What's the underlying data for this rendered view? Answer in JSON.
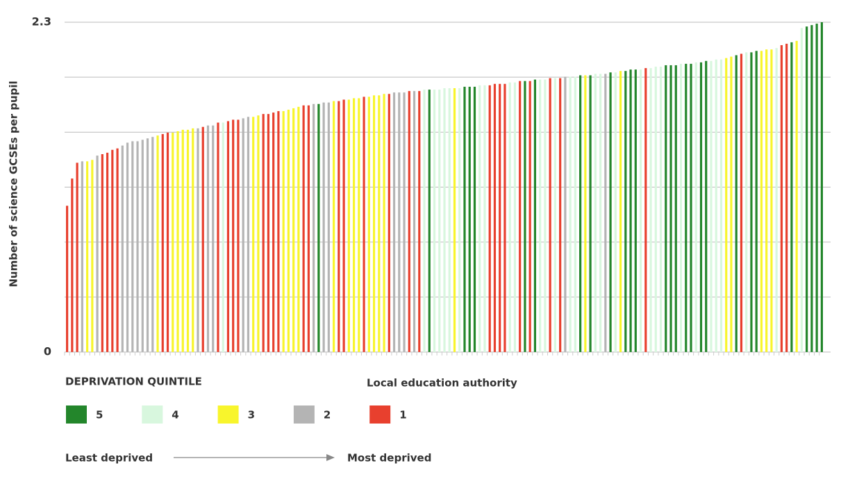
{
  "chart_data": {
    "type": "bar",
    "ylabel": "Number of science GCSEs per pupil",
    "ylim": [
      0,
      2.3
    ],
    "yticks": [
      0,
      2.3
    ],
    "ygrid": [
      0.383,
      0.767,
      1.15,
      1.533,
      1.917
    ],
    "grid": true,
    "categories": [
      null,
      null,
      null,
      null,
      null,
      null,
      null,
      null,
      null,
      null,
      null,
      null,
      null,
      null,
      null,
      null,
      null,
      null,
      null,
      null,
      null,
      null,
      null,
      null,
      null,
      null,
      null,
      null,
      null,
      null,
      null,
      null,
      null,
      null,
      null,
      null,
      null,
      null,
      null,
      null,
      null,
      null,
      null,
      null,
      null,
      null,
      null,
      null,
      null,
      null,
      null,
      null,
      null,
      null,
      null,
      null,
      null,
      null,
      null,
      null,
      null,
      null,
      null,
      null,
      null,
      null,
      null,
      null,
      null,
      null,
      null,
      null,
      null,
      null,
      null,
      null,
      null,
      null,
      null,
      null,
      null,
      null,
      null,
      null,
      null,
      null,
      null,
      null,
      null,
      null,
      null,
      null,
      null,
      null,
      null,
      null,
      null,
      null,
      null,
      null,
      null,
      null,
      null,
      null,
      null,
      null,
      null,
      null,
      null,
      null,
      null,
      null,
      null,
      null,
      null,
      null,
      null,
      null,
      null,
      null,
      null,
      null,
      null,
      null,
      null,
      null,
      null,
      null,
      null,
      null,
      null,
      null,
      null,
      null,
      null,
      null,
      null,
      null,
      null,
      null,
      null,
      null,
      null,
      null,
      null,
      null,
      null,
      null,
      null,
      null,
      null
    ],
    "values": [
      1.02,
      1.21,
      1.32,
      1.33,
      1.33,
      1.34,
      1.37,
      1.38,
      1.39,
      1.41,
      1.42,
      1.44,
      1.46,
      1.47,
      1.47,
      1.48,
      1.49,
      1.5,
      1.51,
      1.52,
      1.53,
      1.53,
      1.54,
      1.55,
      1.55,
      1.56,
      1.56,
      1.57,
      1.58,
      1.58,
      1.6,
      1.6,
      1.61,
      1.62,
      1.62,
      1.63,
      1.64,
      1.64,
      1.65,
      1.66,
      1.66,
      1.67,
      1.68,
      1.68,
      1.69,
      1.7,
      1.71,
      1.72,
      1.72,
      1.73,
      1.73,
      1.74,
      1.74,
      1.75,
      1.75,
      1.76,
      1.76,
      1.77,
      1.77,
      1.78,
      1.78,
      1.79,
      1.79,
      1.8,
      1.8,
      1.81,
      1.81,
      1.81,
      1.82,
      1.82,
      1.82,
      1.83,
      1.83,
      1.83,
      1.83,
      1.84,
      1.84,
      1.84,
      1.84,
      1.85,
      1.85,
      1.85,
      1.86,
      1.86,
      1.86,
      1.87,
      1.87,
      1.87,
      1.88,
      1.88,
      1.89,
      1.89,
      1.89,
      1.9,
      1.9,
      1.9,
      1.91,
      1.91,
      1.91,
      1.92,
      1.92,
      1.92,
      1.93,
      1.93,
      1.93,
      1.94,
      1.94,
      1.94,
      1.95,
      1.95,
      1.96,
      1.96,
      1.97,
      1.97,
      1.97,
      1.98,
      1.98,
      1.99,
      1.99,
      2.0,
      2.0,
      2.0,
      2.01,
      2.01,
      2.01,
      2.02,
      2.02,
      2.03,
      2.03,
      2.04,
      2.04,
      2.05,
      2.06,
      2.07,
      2.08,
      2.09,
      2.09,
      2.1,
      2.1,
      2.11,
      2.11,
      2.12,
      2.14,
      2.15,
      2.16,
      2.17,
      2.26,
      2.27,
      2.28,
      2.29,
      2.3
    ],
    "quintiles": [
      "1",
      "1",
      "1",
      "2",
      "3",
      "3",
      "2",
      "1",
      "1",
      "1",
      "1",
      "2",
      "2",
      "2",
      "2",
      "2",
      "2",
      "2",
      "3",
      "1",
      "1",
      "3",
      "3",
      "3",
      "3",
      "3",
      "2",
      "1",
      "2",
      "2",
      "1",
      "4",
      "1",
      "1",
      "1",
      "2",
      "2",
      "3",
      "3",
      "1",
      "1",
      "1",
      "1",
      "3",
      "3",
      "3",
      "3",
      "1",
      "1",
      "2",
      "5",
      "2",
      "2",
      "3",
      "1",
      "1",
      "3",
      "3",
      "3",
      "1",
      "3",
      "3",
      "3",
      "3",
      "1",
      "2",
      "2",
      "2",
      "1",
      "2",
      "1",
      "4",
      "5",
      "4",
      "4",
      "4",
      "4",
      "3",
      "4",
      "5",
      "5",
      "5",
      "4",
      "4",
      "1",
      "1",
      "1",
      "1",
      "4",
      "4",
      "1",
      "5",
      "1",
      "5",
      "4",
      "4",
      "1",
      "4",
      "1",
      "2",
      "4",
      "4",
      "5",
      "3",
      "5",
      "4",
      "4",
      "2",
      "5",
      "4",
      "3",
      "5",
      "5",
      "5",
      "4",
      "1",
      "4",
      "4",
      "4",
      "5",
      "5",
      "5",
      "4",
      "5",
      "5",
      "4",
      "5",
      "5",
      "4",
      "4",
      "4",
      "3",
      "3",
      "5",
      "1",
      "4",
      "5",
      "5",
      "3",
      "3",
      "3",
      "4",
      "1",
      "1",
      "5",
      "3",
      "4",
      "5",
      "5",
      "5",
      "5"
    ],
    "legend_title": "DEPRIVATION QUINTILE",
    "legend": [
      {
        "name": "5",
        "color": "#23862b"
      },
      {
        "name": "4",
        "color": "#d8f7de"
      },
      {
        "name": "3",
        "color": "#f8f52c"
      },
      {
        "name": "2",
        "color": "#b4b4b4"
      },
      {
        "name": "1",
        "color": "#e8402e"
      }
    ],
    "annotation": "Local education authority",
    "arrow_labels": [
      "Least deprived",
      "Most deprived"
    ]
  }
}
